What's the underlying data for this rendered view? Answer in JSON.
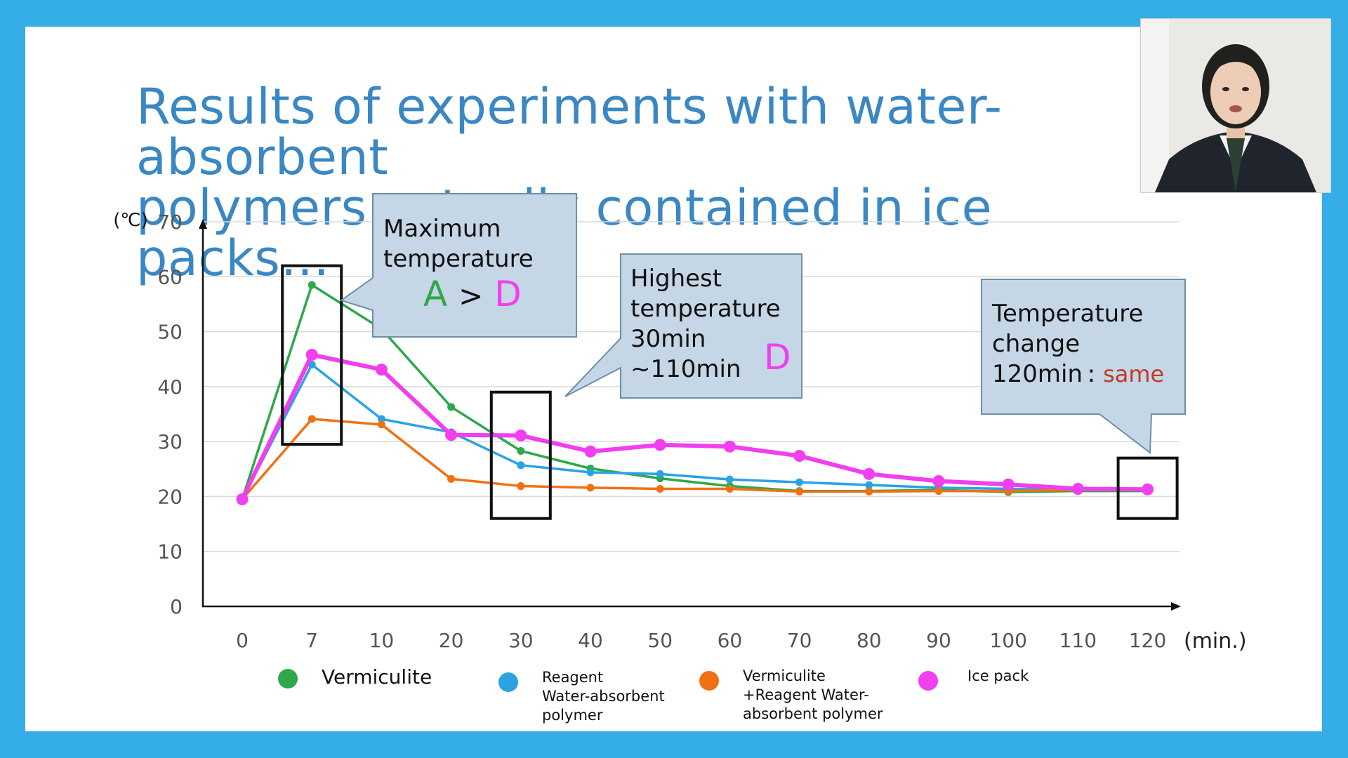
{
  "slide": {
    "title_lines": [
      "Results of experiments with water-absorbent",
      "polymers actually contained in ice packs…"
    ]
  },
  "colors": {
    "background": "#35ade6",
    "title": "#3a87c4",
    "vermiculite": "#2ea84b",
    "reagent": "#2aa3e3",
    "mix": "#f07114",
    "icepack": "#f03ef0",
    "callout_fill": "#c5d7e6",
    "callout_border": "#6e8ea8",
    "same_text": "#c0392b"
  },
  "callouts": {
    "max": {
      "line1": "Maximum",
      "line2": "temperature",
      "a": "A",
      "gt": ">",
      "d": "D"
    },
    "highest": {
      "line1": "Highest",
      "line2": "temperature",
      "line3": "30min",
      "line4": "~110min",
      "d": "D"
    },
    "change": {
      "line1": "Temperature",
      "line2": "change",
      "line3": "120min :",
      "same": "same"
    }
  },
  "legend": [
    {
      "key": "vermiculite",
      "lines": [
        "Vermiculite"
      ]
    },
    {
      "key": "reagent",
      "lines": [
        "Reagent",
        "Water-absorbent",
        "polymer"
      ]
    },
    {
      "key": "mix",
      "lines": [
        "Vermiculite",
        "+Reagent Water-",
        "absorbent  polymer"
      ]
    },
    {
      "key": "icepack",
      "lines": [
        "Ice pack"
      ]
    }
  ],
  "chart_data": {
    "type": "line",
    "ylabel": "(℃)",
    "xlabel": "(min.)",
    "ylim": [
      0,
      70
    ],
    "y_ticks": [
      0,
      10,
      20,
      30,
      40,
      50,
      60,
      70
    ],
    "categories": [
      "0",
      "7",
      "10",
      "20",
      "30",
      "40",
      "50",
      "60",
      "70",
      "80",
      "90",
      "100",
      "110",
      "120"
    ],
    "grid": true,
    "legend_position": "bottom",
    "series": [
      {
        "key": "vermiculite",
        "name": "Vermiculite",
        "values": [
          19.5,
          58.5,
          50.5,
          36.3,
          28.3,
          25.1,
          23.3,
          21.9,
          21.0,
          21.0,
          21.2,
          20.8,
          21.0,
          21.0
        ]
      },
      {
        "key": "reagent",
        "name": "Reagent Water-absorbent polymer",
        "values": [
          19.5,
          44.0,
          34.1,
          31.7,
          25.7,
          24.4,
          24.1,
          23.1,
          22.6,
          22.1,
          21.6,
          21.4,
          21.2,
          21.2
        ]
      },
      {
        "key": "mix",
        "name": "Vermiculite +Reagent Water-absorbent polymer",
        "values": [
          19.5,
          34.1,
          33.1,
          23.2,
          21.9,
          21.6,
          21.4,
          21.4,
          20.9,
          20.9,
          21.0,
          21.0,
          21.2,
          21.2
        ]
      },
      {
        "key": "icepack",
        "name": "Ice pack",
        "values": [
          19.5,
          45.8,
          43.1,
          31.2,
          31.1,
          28.2,
          29.4,
          29.1,
          27.4,
          24.1,
          22.8,
          22.2,
          21.4,
          21.3
        ]
      }
    ],
    "highlight_boxes": [
      {
        "from_category": "7",
        "y_range": [
          29.5,
          62.0
        ]
      },
      {
        "from_category": "30",
        "y_range": [
          16.0,
          39.0
        ]
      },
      {
        "from_category": "120",
        "y_range": [
          16.0,
          27.0
        ]
      }
    ]
  }
}
